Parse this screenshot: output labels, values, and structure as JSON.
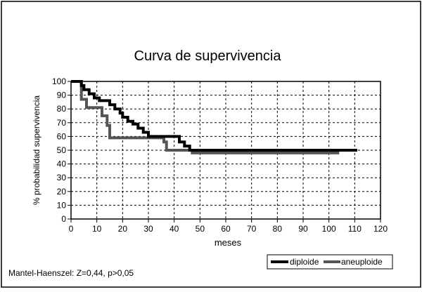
{
  "chart_data": {
    "type": "line",
    "title": "Curva de supervivencia",
    "xlabel": "meses",
    "ylabel": "% probabilidad supervivencia",
    "xlim": [
      0,
      120
    ],
    "ylim": [
      0,
      100
    ],
    "xticks": [
      "0",
      "10",
      "20",
      "30",
      "40",
      "50",
      "60",
      "70",
      "80",
      "90",
      "100",
      "110",
      "120"
    ],
    "yticks": [
      "0",
      "10",
      "20",
      "30",
      "40",
      "50",
      "60",
      "70",
      "80",
      "90",
      "100"
    ],
    "grid": true,
    "legend_position": "bottom-right",
    "series": [
      {
        "name": "diploide",
        "color": "#000000",
        "points": [
          [
            0,
            100
          ],
          [
            4,
            100
          ],
          [
            4,
            97
          ],
          [
            5,
            97
          ],
          [
            5,
            94
          ],
          [
            7,
            94
          ],
          [
            7,
            91
          ],
          [
            9,
            91
          ],
          [
            9,
            88
          ],
          [
            11,
            88
          ],
          [
            11,
            86
          ],
          [
            15,
            86
          ],
          [
            15,
            83
          ],
          [
            17,
            83
          ],
          [
            17,
            80
          ],
          [
            19,
            80
          ],
          [
            19,
            77
          ],
          [
            20,
            77
          ],
          [
            20,
            74
          ],
          [
            22,
            74
          ],
          [
            22,
            71
          ],
          [
            24,
            71
          ],
          [
            24,
            69
          ],
          [
            26,
            69
          ],
          [
            26,
            66
          ],
          [
            28,
            66
          ],
          [
            28,
            63
          ],
          [
            30,
            63
          ],
          [
            30,
            60
          ],
          [
            42,
            60
          ],
          [
            42,
            56
          ],
          [
            44,
            56
          ],
          [
            44,
            53
          ],
          [
            46,
            53
          ],
          [
            46,
            50
          ],
          [
            111,
            50
          ]
        ]
      },
      {
        "name": "aneuploide",
        "color": "#555555",
        "points": [
          [
            0,
            100
          ],
          [
            4,
            100
          ],
          [
            4,
            87
          ],
          [
            6,
            87
          ],
          [
            6,
            81
          ],
          [
            12,
            81
          ],
          [
            12,
            75
          ],
          [
            14,
            75
          ],
          [
            14,
            68
          ],
          [
            15,
            68
          ],
          [
            15,
            59
          ],
          [
            36,
            59
          ],
          [
            36,
            56
          ],
          [
            37,
            56
          ],
          [
            37,
            50
          ],
          [
            47,
            50
          ],
          [
            47,
            48
          ],
          [
            104,
            48
          ]
        ]
      }
    ]
  },
  "footnote": "Mantel-Haenszel: Z=0,44, p>0,05"
}
